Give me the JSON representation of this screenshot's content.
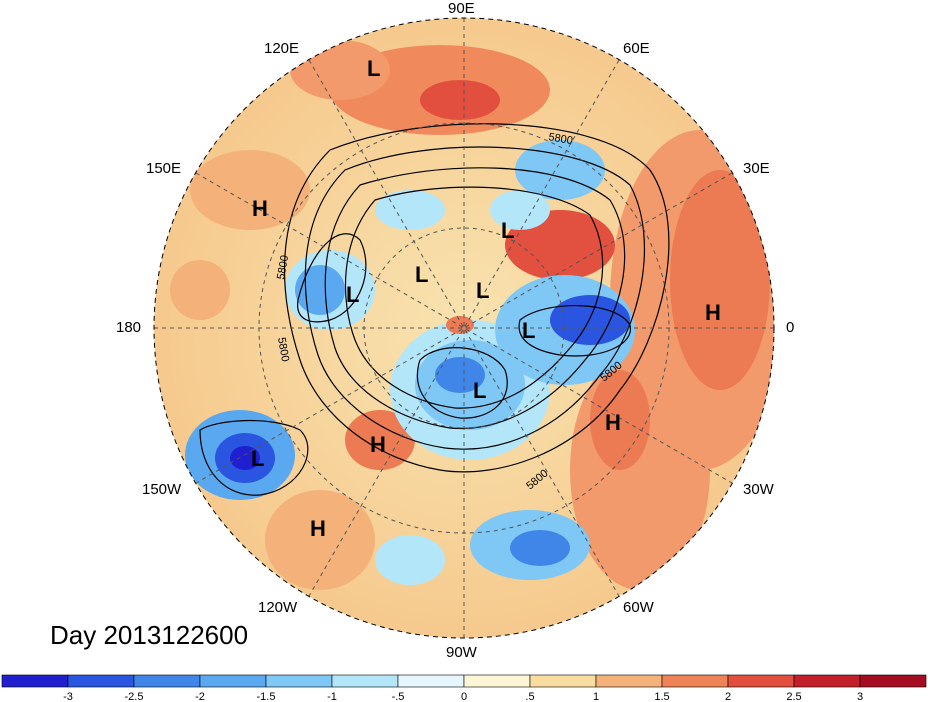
{
  "map": {
    "projection": "north-polar-stereographic",
    "longitude_labels": [
      "90E",
      "60E",
      "30E",
      "0",
      "30W",
      "60W",
      "90W",
      "120W",
      "150W",
      "180",
      "150E",
      "120E"
    ],
    "contour_labels": [
      "5800",
      "5800",
      "5800",
      "5800",
      "5800"
    ],
    "pressure_markers": [
      {
        "label": "L"
      },
      {
        "label": "H"
      },
      {
        "label": "L"
      },
      {
        "label": "L"
      },
      {
        "label": "L"
      },
      {
        "label": "L"
      },
      {
        "label": "L"
      },
      {
        "label": "H"
      },
      {
        "label": "L"
      },
      {
        "label": "H"
      },
      {
        "label": "H"
      },
      {
        "label": "L"
      },
      {
        "label": "H"
      }
    ]
  },
  "timestamp": "Day 2013122600",
  "colorbar": {
    "ticks": [
      "-3",
      "-2.5",
      "-2",
      "-1.5",
      "-1",
      "-.5",
      "0",
      ".5",
      "1",
      "1.5",
      "2",
      "2.5",
      "3"
    ],
    "colors": [
      "#1f1fd0",
      "#2a55e0",
      "#3f86e8",
      "#5aa8f0",
      "#7fc7f5",
      "#b4e6fa",
      "#e6f6fc",
      "#fdf6d6",
      "#f8dca0",
      "#f4b27a",
      "#ee8356",
      "#e24f3e",
      "#c21f2a",
      "#a40c22"
    ]
  }
}
